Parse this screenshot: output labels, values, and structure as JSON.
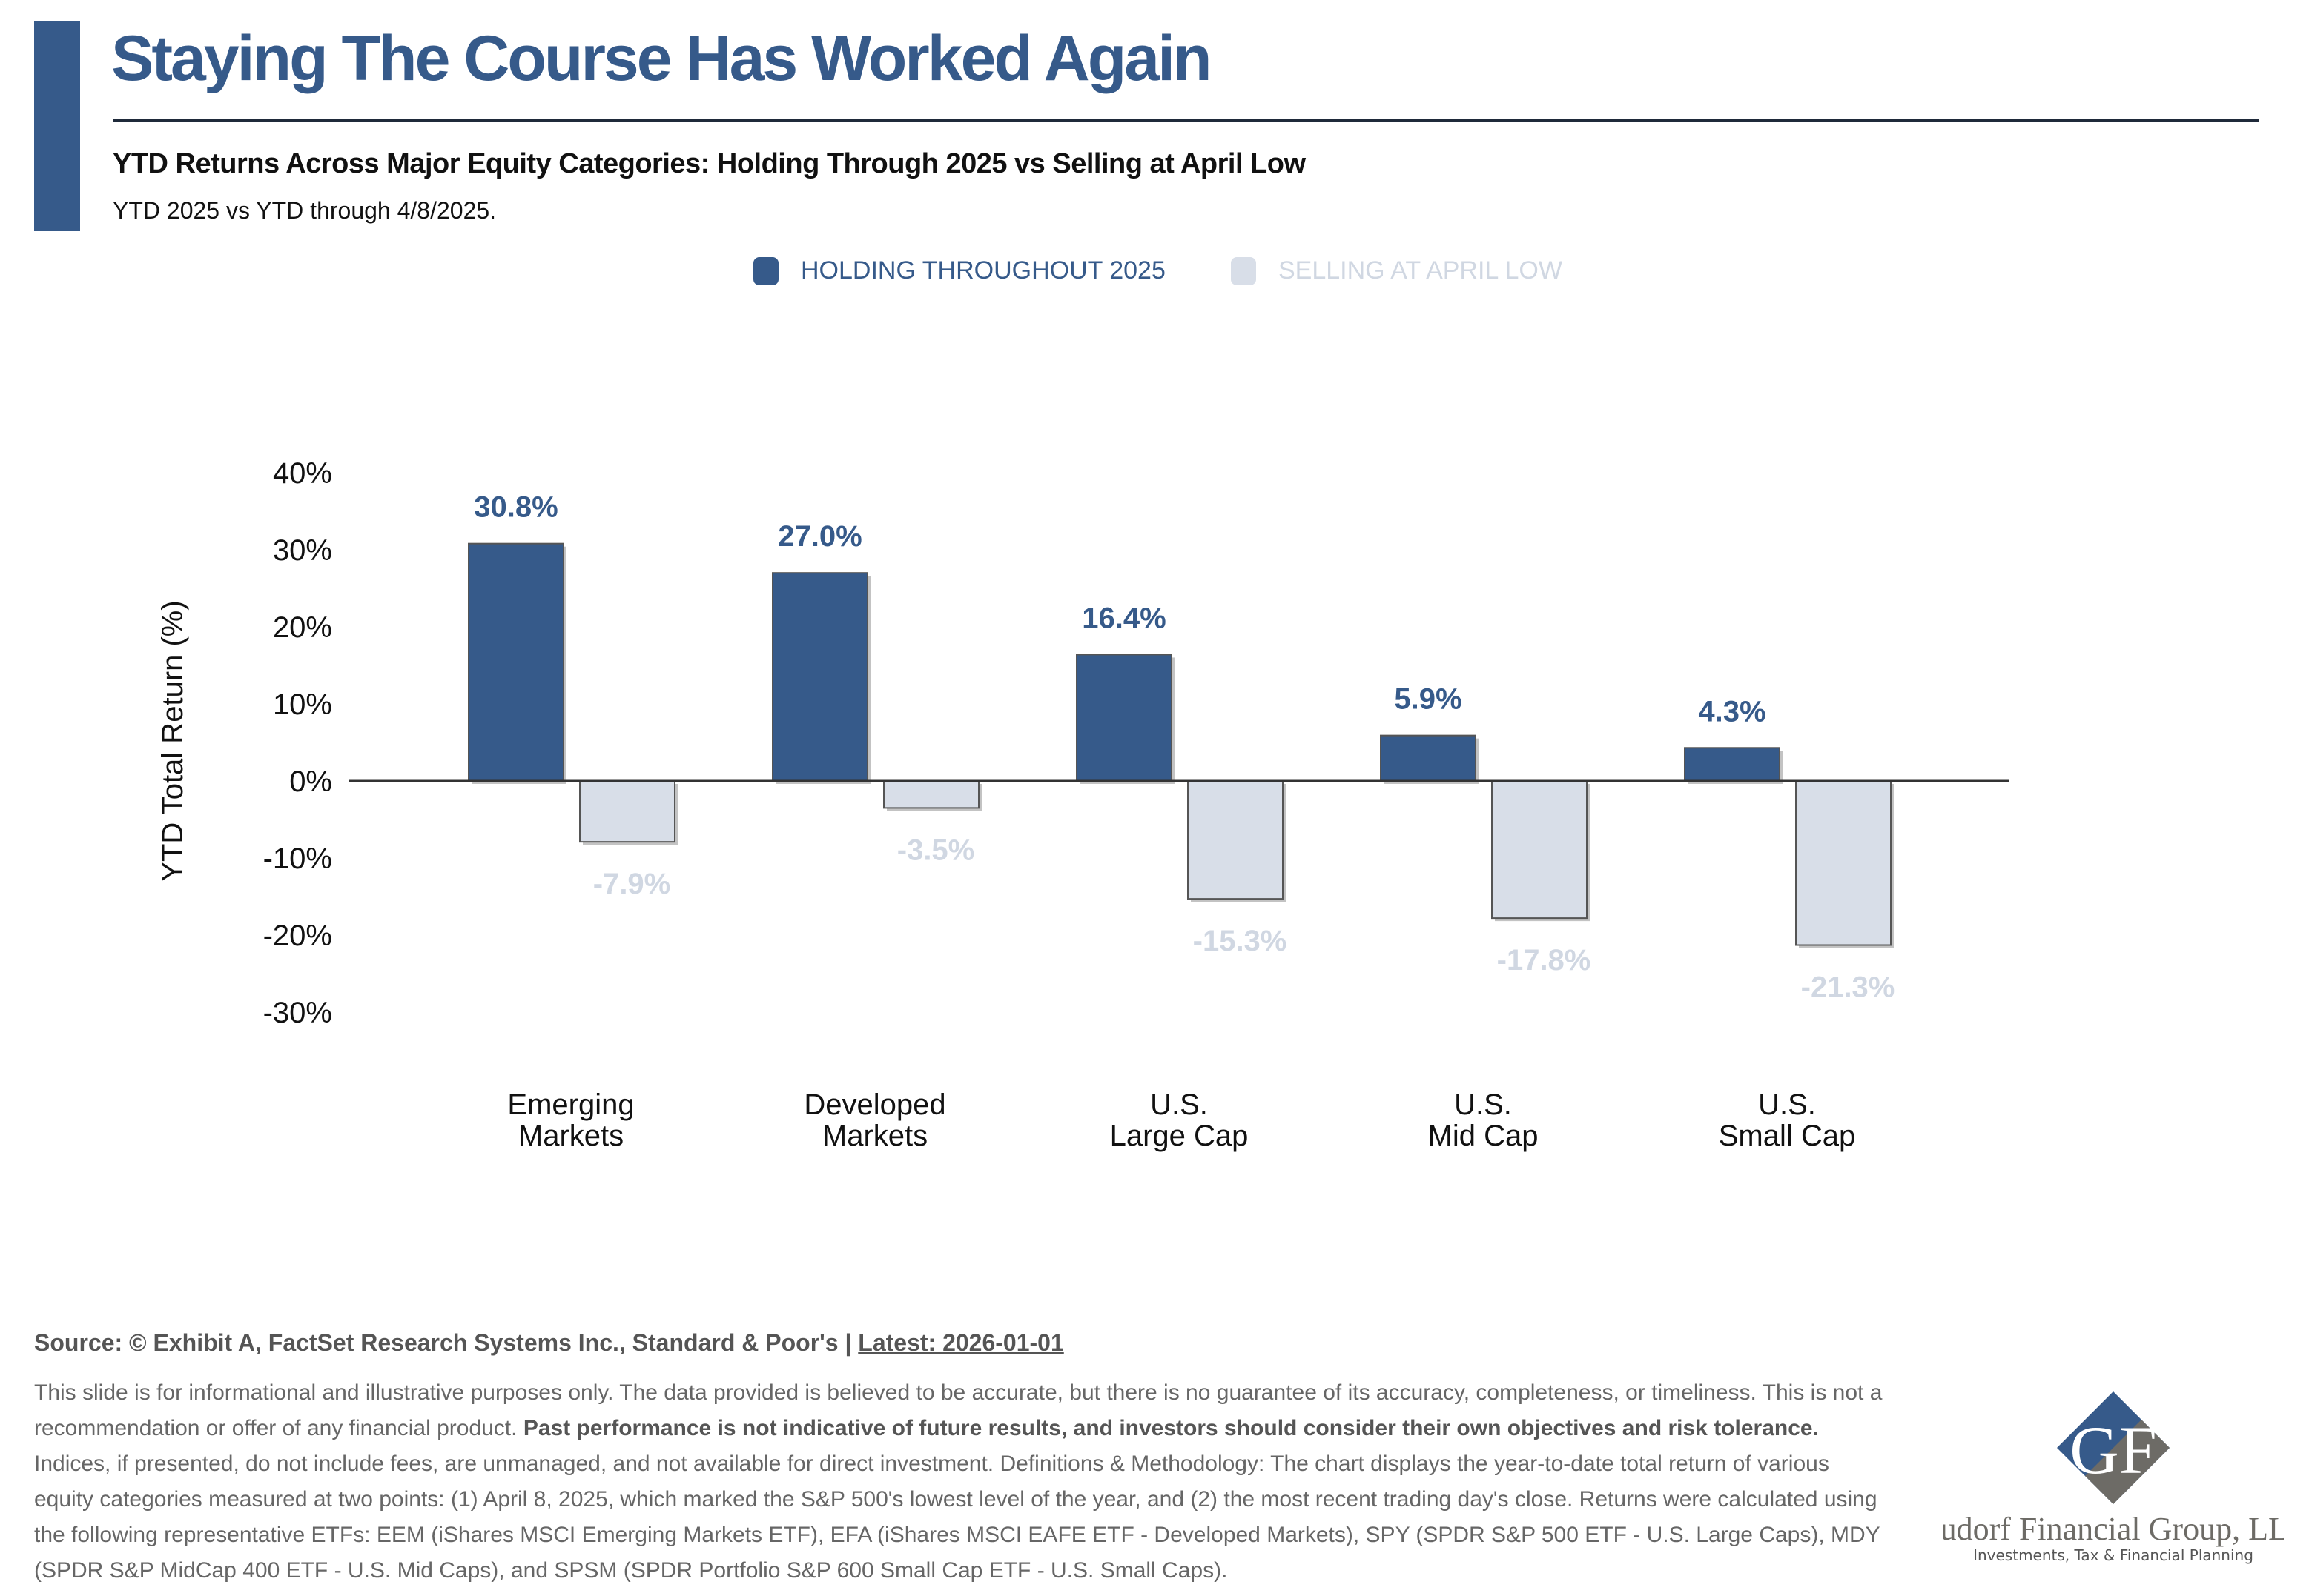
{
  "header": {
    "title": "Staying The Course Has Worked Again",
    "subtitle": "YTD Returns Across Major Equity Categories: Holding Through 2025 vs Selling at April Low",
    "description": "YTD 2025 vs YTD through 4/8/2025."
  },
  "colors": {
    "holding": "#365a8a",
    "selling": "#d8dee8",
    "axis": "#333333"
  },
  "chart_data": {
    "type": "bar",
    "title": "YTD Returns Across Major Equity Categories: Holding Through 2025 vs Selling at April Low",
    "xlabel": "",
    "ylabel": "YTD Total Return (%)",
    "ylim": [
      -30,
      40
    ],
    "yticks": [
      40,
      30,
      20,
      10,
      0,
      -10,
      -20,
      -30
    ],
    "ytick_labels": [
      "40%",
      "30%",
      "20%",
      "10%",
      "0%",
      "-10%",
      "-20%",
      "-30%"
    ],
    "categories": [
      [
        "Emerging",
        "Markets"
      ],
      [
        "Developed",
        "Markets"
      ],
      [
        "U.S.",
        "Large Cap"
      ],
      [
        "U.S.",
        "Mid Cap"
      ],
      [
        "U.S.",
        "Small Cap"
      ]
    ],
    "legend_position": "top-center",
    "series": [
      {
        "name": "HOLDING THROUGHOUT 2025",
        "values": [
          30.8,
          27.0,
          16.4,
          5.9,
          4.3
        ],
        "labels": [
          "30.8%",
          "27.0%",
          "16.4%",
          "5.9%",
          "4.3%"
        ]
      },
      {
        "name": "SELLING AT APRIL LOW",
        "values": [
          -7.9,
          -3.5,
          -15.3,
          -17.8,
          -21.3
        ],
        "labels": [
          "-7.9%",
          "-3.5%",
          "-15.3%",
          "-17.8%",
          "-21.3%"
        ]
      }
    ]
  },
  "footer": {
    "source": "Source: © Exhibit A, FactSet Research Systems Inc., Standard & Poor's | ",
    "latest": "Latest: 2026-01-01",
    "disclaimer_1": "This slide is for informational and illustrative purposes only. The data provided is believed to be accurate, but there is no guarantee of its accuracy, completeness, or timeliness. This is not a recommendation or offer of any financial product. ",
    "disclaimer_bold": "Past performance is not indicative of future results, and investors should consider their own objectives and risk tolerance.",
    "disclaimer_2": " Indices, if presented, do not include fees, are unmanaged, and not available for direct investment. Definitions & Methodology: The chart displays the year-to-date total return of various equity categories measured at two points: (1) April 8, 2025, which marked the S&P 500's lowest level of the year, and (2) the most recent trading day's close. Returns were calculated using the following representative ETFs: EEM (iShares MSCI Emerging Markets ETF), EFA (iShares MSCI EAFE ETF - Developed Markets), SPY (SPDR S&P 500 ETF - U.S. Large Caps), MDY (SPDR S&P MidCap 400 ETF - U.S. Mid Caps), and SPSM (SPDR Portfolio S&P 600 Small Cap ETF - U.S. Small Caps)."
  },
  "logo": {
    "monogram": "GF",
    "company": "Gudorf Financial Group, LLC",
    "tagline": "Investments, Tax & Financial Planning"
  }
}
